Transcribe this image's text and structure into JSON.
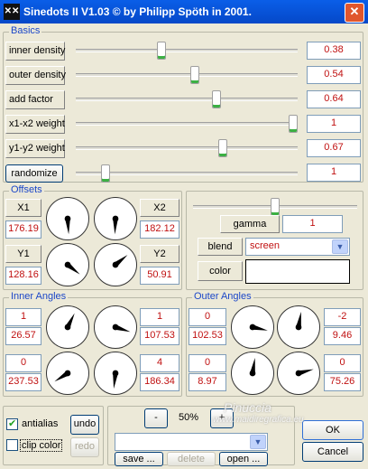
{
  "window": {
    "title": "Sinedots II V1.03 © by Philipp Spöth in 2001.",
    "app_icon": "sinedots-icon",
    "close_glyph": "✕"
  },
  "basics": {
    "title": "Basics",
    "rows": [
      {
        "label": "inner density",
        "value": "0.38",
        "slider": 0.38
      },
      {
        "label": "outer density",
        "value": "0.54",
        "slider": 0.54
      },
      {
        "label": "add factor",
        "value": "0.64",
        "slider": 0.64
      },
      {
        "label": "x1-x2 weight",
        "value": "1",
        "slider": 1.0
      },
      {
        "label": "y1-y2 weight",
        "value": "0.67",
        "slider": 0.67
      }
    ],
    "randomize": {
      "label": "randomize",
      "value": "1",
      "slider": 0.12
    }
  },
  "offsets": {
    "title": "Offsets",
    "x1": {
      "label": "X1",
      "value": "176.19"
    },
    "x2": {
      "label": "X2",
      "value": "182.12"
    },
    "y1": {
      "label": "Y1",
      "value": "128.16"
    },
    "y2": {
      "label": "Y2",
      "value": "50.91"
    },
    "dial_angles": [
      176.19,
      182.12,
      128.16,
      50.91
    ]
  },
  "gamma": {
    "label": "gamma",
    "value": "1",
    "slider": 0.5
  },
  "blend": {
    "label": "blend",
    "value": "screen"
  },
  "color": {
    "label": "color",
    "value": "#ffffff"
  },
  "inner_angles": {
    "title": "Inner Angles",
    "left_top": {
      "count": "1",
      "value": "26.57"
    },
    "right_top": {
      "count": "1",
      "value": "107.53"
    },
    "left_bottom": {
      "count": "0",
      "value": "237.53"
    },
    "right_bottom": {
      "count": "4",
      "value": "186.34"
    },
    "dial_angles": [
      26.57,
      107.53,
      237.53,
      186.34
    ]
  },
  "outer_angles": {
    "title": "Outer Angles",
    "left_top": {
      "count": "0",
      "value": "102.53"
    },
    "right_top": {
      "count": "-2",
      "value": "9.46"
    },
    "left_bottom": {
      "count": "0",
      "value": "8.97"
    },
    "right_bottom": {
      "count": "0",
      "value": "75.26"
    },
    "dial_angles": [
      102.53,
      9.46,
      8.97,
      75.26
    ]
  },
  "bottom": {
    "antialias": {
      "label": "antialias",
      "checked": true
    },
    "clip_color": {
      "label": "clip color",
      "checked": false
    },
    "undo": "undo",
    "redo": "redo",
    "zoom_minus": "-",
    "zoom": "50%",
    "zoom_plus": "+",
    "preset": "",
    "save": "save ...",
    "delete": "delete",
    "open": "open ...",
    "ok": "OK",
    "cancel": "Cancel"
  },
  "watermark": {
    "line1": "Pinuccia",
    "line2": "www.maidiregrafica.eu"
  }
}
